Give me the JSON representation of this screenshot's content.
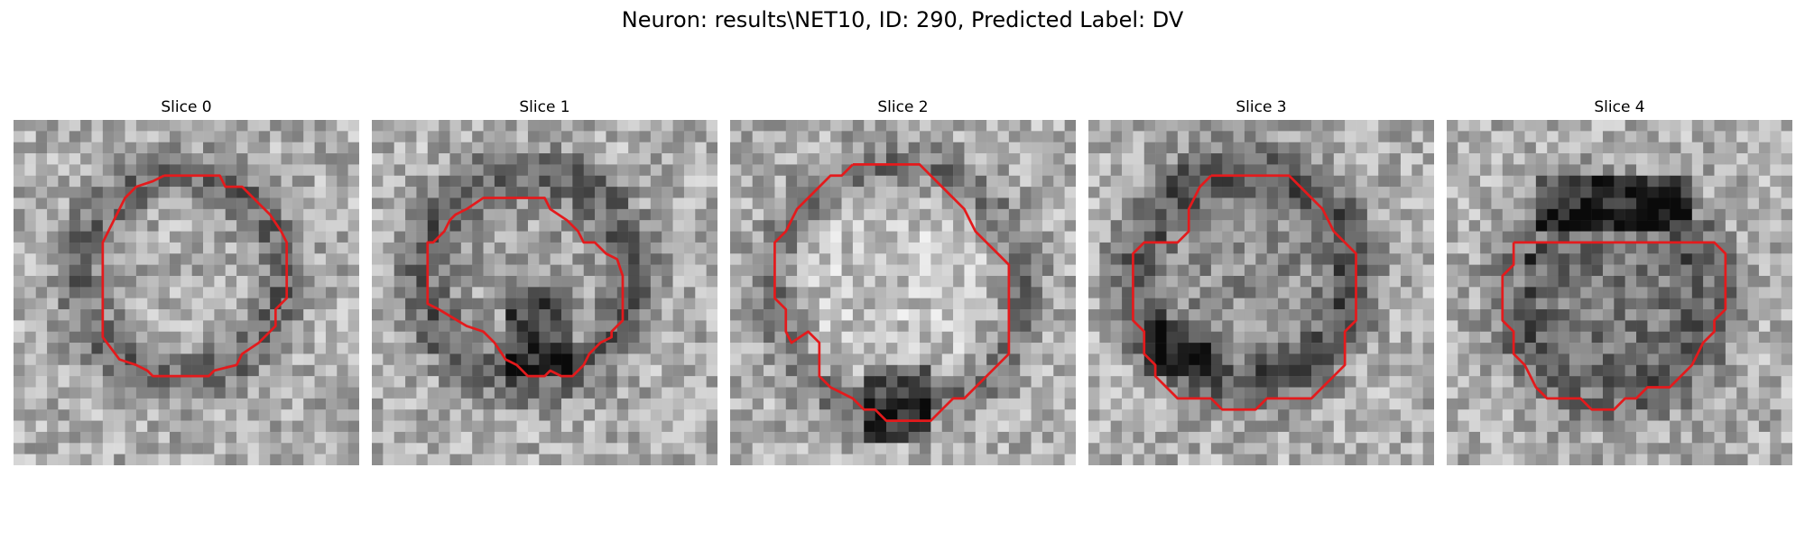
{
  "figure": {
    "title": "Neuron: results\\NET10, ID: 290, Predicted Label: DV"
  },
  "slices": [
    {
      "title": "Slice 0"
    },
    {
      "title": "Slice 1"
    },
    {
      "title": "Slice 2"
    },
    {
      "title": "Slice 3"
    },
    {
      "title": "Slice 4"
    }
  ],
  "colors": {
    "contour": "#e41a1c",
    "background": "#ffffff"
  },
  "image": {
    "colormap": "grayscale",
    "grid_cells": 31
  }
}
